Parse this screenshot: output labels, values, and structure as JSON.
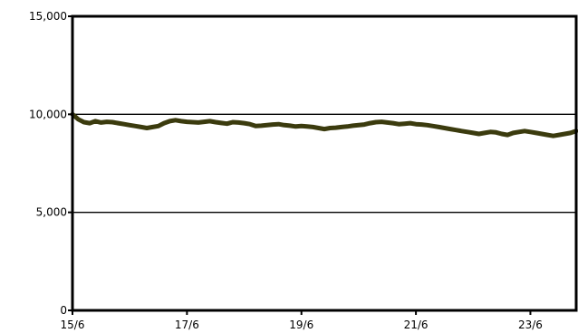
{
  "chart_data": {
    "type": "line",
    "title": "",
    "xlabel": "",
    "ylabel": "",
    "ylim": [
      0,
      15000
    ],
    "y_ticks": [
      {
        "value": 0,
        "label": "0"
      },
      {
        "value": 5000,
        "label": "5,000"
      },
      {
        "value": 10000,
        "label": "10,000"
      },
      {
        "value": 15000,
        "label": "15,000"
      }
    ],
    "gridlines_y": [
      5000,
      10000
    ],
    "x_ticks": [
      {
        "value": 0,
        "label": "15/6"
      },
      {
        "value": 2,
        "label": "17/6"
      },
      {
        "value": 4,
        "label": "19/6"
      },
      {
        "value": 6,
        "label": "21/6"
      },
      {
        "value": 8,
        "label": "23/6"
      }
    ],
    "xlim": [
      0,
      8.8
    ],
    "grid": true,
    "legend": "none",
    "series": [
      {
        "color": "#3b3b0e",
        "x": [
          0,
          0.1,
          0.2,
          0.3,
          0.4,
          0.5,
          0.6,
          0.7,
          0.8,
          0.9,
          1.0,
          1.1,
          1.2,
          1.3,
          1.4,
          1.5,
          1.6,
          1.7,
          1.8,
          1.9,
          2.0,
          2.1,
          2.2,
          2.3,
          2.4,
          2.5,
          2.6,
          2.7,
          2.8,
          2.9,
          3.0,
          3.1,
          3.2,
          3.3,
          3.4,
          3.5,
          3.6,
          3.7,
          3.8,
          3.9,
          4.0,
          4.1,
          4.2,
          4.3,
          4.4,
          4.5,
          4.6,
          4.7,
          4.8,
          4.9,
          5.0,
          5.1,
          5.2,
          5.3,
          5.4,
          5.5,
          5.6,
          5.7,
          5.8,
          5.9,
          6.0,
          6.1,
          6.2,
          6.3,
          6.4,
          6.5,
          6.6,
          6.7,
          6.8,
          6.9,
          7.0,
          7.1,
          7.2,
          7.3,
          7.4,
          7.5,
          7.6,
          7.7,
          7.8,
          7.9,
          8.0,
          8.1,
          8.2,
          8.3,
          8.4,
          8.5,
          8.6,
          8.7,
          8.8
        ],
        "values": [
          10000,
          9750,
          9600,
          9550,
          9650,
          9580,
          9620,
          9600,
          9550,
          9500,
          9450,
          9400,
          9350,
          9300,
          9350,
          9400,
          9550,
          9650,
          9700,
          9650,
          9620,
          9600,
          9580,
          9620,
          9650,
          9600,
          9560,
          9520,
          9600,
          9580,
          9550,
          9500,
          9400,
          9420,
          9450,
          9480,
          9500,
          9450,
          9420,
          9380,
          9400,
          9380,
          9350,
          9300,
          9250,
          9300,
          9320,
          9350,
          9380,
          9420,
          9450,
          9480,
          9550,
          9600,
          9620,
          9580,
          9550,
          9500,
          9520,
          9550,
          9500,
          9480,
          9450,
          9400,
          9350,
          9300,
          9250,
          9200,
          9150,
          9100,
          9050,
          9000,
          9050,
          9100,
          9080,
          9000,
          8950,
          9050,
          9100,
          9150,
          9100,
          9050,
          9000,
          8950,
          8900,
          8950,
          9000,
          9050,
          9150
        ]
      }
    ]
  }
}
